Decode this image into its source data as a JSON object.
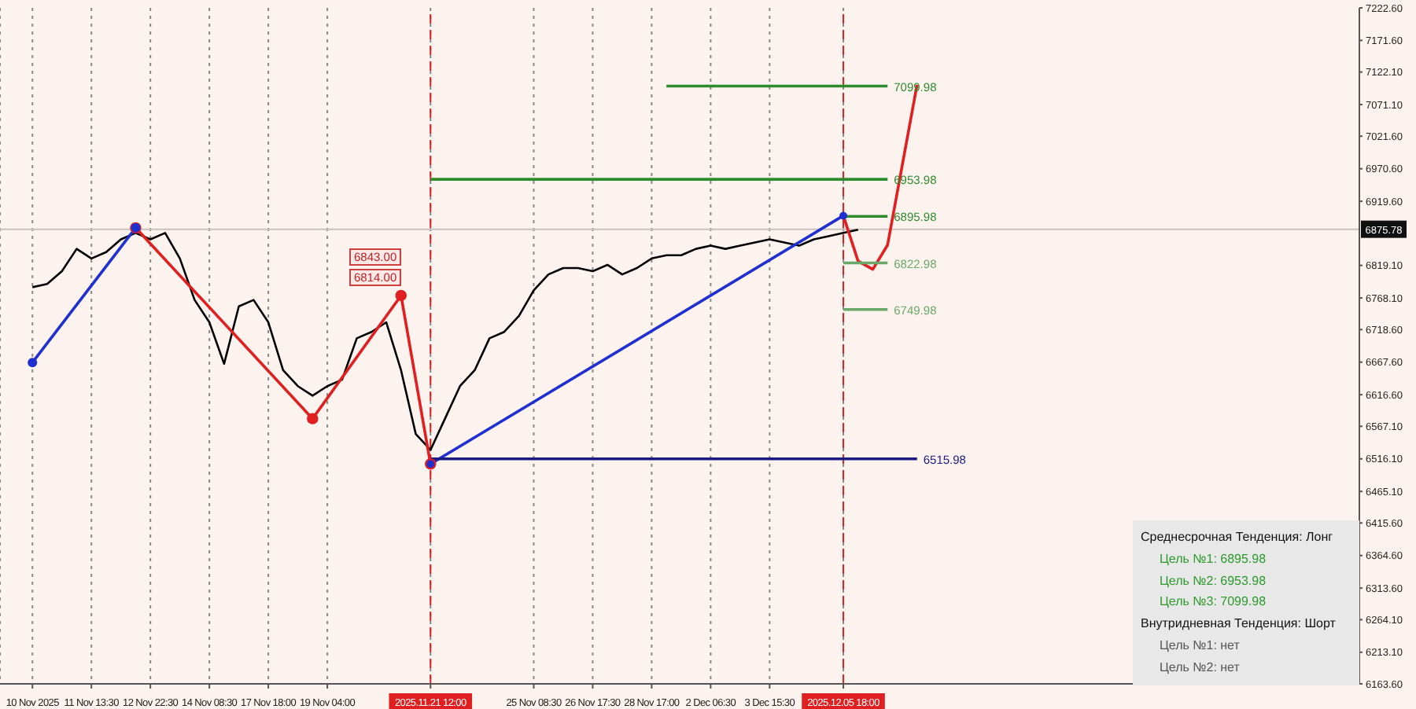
{
  "chart_data": {
    "type": "line",
    "categories": [
      "10 Nov 2025",
      null,
      null,
      null,
      "11 Nov 13:30",
      null,
      null,
      null,
      "12 Nov 22:30",
      null,
      null,
      null,
      "14 Nov 08:30",
      null,
      null,
      null,
      "17 Nov 18:00",
      null,
      null,
      null,
      "19 Nov 04:00",
      null,
      null,
      null,
      null,
      null,
      null,
      "2025.11.21 12:00",
      null,
      null,
      null,
      null,
      null,
      null,
      "25 Nov 08:30",
      null,
      null,
      null,
      "26 Nov 17:30",
      null,
      null,
      null,
      "28 Nov 17:00",
      null,
      null,
      null,
      "2 Dec 06:30",
      null,
      null,
      null,
      "3 Dec 15:30",
      null,
      null,
      null,
      null,
      "2025.12.05 18:00",
      null,
      null,
      null,
      null,
      null,
      null,
      null,
      null,
      null,
      null,
      null,
      null,
      null,
      null,
      null,
      null,
      null,
      null,
      null,
      null,
      null,
      null,
      null,
      null,
      null,
      null,
      null,
      null,
      null,
      null,
      null,
      null,
      null,
      null,
      null
    ],
    "ylim": [
      6163.6,
      7222.6
    ],
    "yticks": [
      {
        "value": 6163.6,
        "label": "6163.60"
      },
      {
        "value": 6213.1,
        "label": "6213.10"
      },
      {
        "value": 6264.1,
        "label": "6264.10"
      },
      {
        "value": 6313.6,
        "label": "6313.60"
      },
      {
        "value": 6364.6,
        "label": "6364.60"
      },
      {
        "value": 6415.6,
        "label": "6415.60"
      },
      {
        "value": 6465.1,
        "label": "6465.10"
      },
      {
        "value": 6516.1,
        "label": "6516.10"
      },
      {
        "value": 6567.1,
        "label": "6567.10"
      },
      {
        "value": 6616.6,
        "label": "6616.60"
      },
      {
        "value": 6667.6,
        "label": "6667.60"
      },
      {
        "value": 6718.6,
        "label": "6718.60"
      },
      {
        "value": 6768.1,
        "label": "6768.10"
      },
      {
        "value": 6819.1,
        "label": "6819.10"
      },
      {
        "value": 6919.6,
        "label": "6919.60"
      },
      {
        "value": 6970.6,
        "label": "6970.60"
      },
      {
        "value": 7021.6,
        "label": "7021.60"
      },
      {
        "value": 7071.1,
        "label": "7071.10"
      },
      {
        "value": 7122.1,
        "label": "7122.10"
      },
      {
        "value": 7171.6,
        "label": "7171.60"
      },
      {
        "value": 7222.6,
        "label": "7222.60"
      }
    ],
    "grid": "x",
    "marker": "none",
    "line_style": "solid",
    "series": [
      {
        "color": "#000000",
        "values": [
          6785,
          6790,
          6810,
          6845,
          6830,
          6840,
          6860,
          6870,
          6860,
          6870,
          6830,
          6765,
          6730,
          6665,
          6755,
          6765,
          6730,
          6655,
          6630,
          6615,
          6630,
          6640,
          6705,
          6715,
          6730,
          6655,
          6555,
          6530,
          6580,
          6630,
          6655,
          6705,
          6715,
          6740,
          6780,
          6805,
          6815,
          6815,
          6810,
          6820,
          6805,
          6815,
          6830,
          6835,
          6835,
          6845,
          6850,
          6845,
          6850,
          6855,
          6860,
          6855,
          6850,
          6860,
          6865,
          6870,
          6875,
          null,
          null,
          null,
          null,
          null,
          null,
          null,
          null,
          null,
          null,
          null,
          null,
          null,
          null,
          null,
          null,
          null,
          null,
          null,
          null,
          null,
          null,
          null,
          null,
          null,
          null,
          null,
          null,
          null,
          null,
          null,
          null,
          null,
          null
        ]
      },
      {
        "color": "#e02020",
        "marker": "circle",
        "values": [
          null,
          null,
          null,
          null,
          null,
          null,
          null,
          6878,
          null,
          null,
          null,
          null,
          null,
          null,
          null,
          null,
          null,
          null,
          null,
          6579,
          null,
          null,
          null,
          null,
          null,
          6772,
          null,
          6508,
          null,
          null,
          null,
          null,
          null,
          null,
          null,
          null,
          null,
          null,
          null,
          null,
          null,
          null,
          null,
          null,
          null,
          null,
          null,
          null,
          null,
          null,
          null,
          null,
          null,
          null,
          null,
          null,
          null,
          null,
          null,
          null,
          null,
          null,
          null,
          null,
          null,
          null,
          null,
          null,
          null,
          null,
          null,
          null,
          null,
          null,
          null,
          null,
          null,
          null,
          null,
          null,
          null,
          null,
          null,
          null,
          null,
          null,
          null,
          null,
          null,
          null,
          null
        ]
      },
      {
        "color": "#1f2fd0",
        "marker": "circle",
        "values": [
          6667,
          null,
          null,
          null,
          null,
          null,
          null,
          6878,
          null,
          null,
          null,
          null,
          null,
          null,
          null,
          null,
          null,
          null,
          null,
          null,
          null,
          null,
          null,
          null,
          null,
          null,
          null,
          null,
          null,
          null,
          null,
          null,
          null,
          null,
          null,
          null,
          null,
          null,
          null,
          null,
          null,
          null,
          null,
          null,
          null,
          null,
          null,
          null,
          null,
          null,
          null,
          null,
          null,
          null,
          null,
          null,
          null,
          null,
          null,
          null,
          null,
          null,
          null,
          null,
          null,
          null,
          null,
          null,
          null,
          null,
          null,
          null,
          null,
          null,
          null,
          null,
          null,
          null,
          null,
          null,
          null,
          null,
          null,
          null,
          null,
          null,
          null,
          null,
          null,
          null,
          null
        ]
      },
      {
        "color": "#1f2fd0",
        "marker": "circle",
        "values": [
          null,
          null,
          null,
          null,
          null,
          null,
          null,
          null,
          null,
          null,
          null,
          null,
          null,
          null,
          null,
          null,
          null,
          null,
          null,
          null,
          null,
          null,
          null,
          null,
          null,
          null,
          null,
          6508,
          null,
          null,
          null,
          null,
          null,
          null,
          null,
          null,
          null,
          null,
          null,
          null,
          null,
          null,
          null,
          null,
          null,
          null,
          null,
          null,
          null,
          null,
          null,
          null,
          null,
          null,
          null,
          6897,
          null,
          null,
          null,
          null,
          null,
          null,
          null,
          null,
          null,
          null,
          null,
          null,
          null,
          null,
          null,
          null,
          null,
          null,
          null,
          null,
          null,
          null,
          null,
          null,
          null,
          null,
          null,
          null,
          null,
          null,
          null,
          null,
          null,
          null,
          null
        ]
      },
      {
        "color": "#e02020",
        "values": [
          null,
          null,
          null,
          null,
          null,
          null,
          null,
          null,
          null,
          null,
          null,
          null,
          null,
          null,
          null,
          null,
          null,
          null,
          null,
          null,
          null,
          null,
          null,
          null,
          null,
          null,
          null,
          null,
          null,
          null,
          null,
          null,
          null,
          null,
          null,
          null,
          null,
          null,
          null,
          null,
          null,
          null,
          null,
          null,
          null,
          null,
          null,
          null,
          null,
          null,
          null,
          null,
          null,
          null,
          null,
          6897,
          6826,
          6813,
          6851,
          null,
          7102,
          null,
          null,
          null,
          null,
          null,
          null,
          null,
          null,
          null,
          null,
          null,
          null,
          null,
          null,
          null,
          null,
          null,
          null,
          null,
          null,
          null,
          null,
          null,
          null,
          null,
          null,
          null,
          null,
          null,
          null
        ]
      },
      {
        "name": "7099.98",
        "color": "#2e8b2e",
        "values": [
          null,
          null,
          null,
          null,
          null,
          null,
          null,
          null,
          null,
          null,
          null,
          null,
          null,
          null,
          null,
          null,
          null,
          null,
          null,
          null,
          null,
          null,
          null,
          null,
          null,
          null,
          null,
          null,
          null,
          null,
          null,
          null,
          null,
          null,
          null,
          null,
          null,
          null,
          null,
          null,
          null,
          null,
          null,
          7100,
          null,
          null,
          null,
          null,
          null,
          null,
          null,
          null,
          null,
          null,
          null,
          null,
          null,
          null,
          7100,
          null,
          null,
          null,
          null,
          null,
          null,
          null,
          null,
          null,
          null,
          null,
          null,
          null,
          null,
          null,
          null,
          null,
          null,
          null,
          null,
          null,
          null,
          null,
          null,
          null,
          null,
          null,
          null,
          null,
          null,
          null,
          null
        ]
      },
      {
        "name": "6953.98",
        "color": "#2e8b2e",
        "values": [
          null,
          null,
          null,
          null,
          null,
          null,
          null,
          null,
          null,
          null,
          null,
          null,
          null,
          null,
          null,
          null,
          null,
          null,
          null,
          null,
          null,
          null,
          null,
          null,
          null,
          null,
          null,
          6954,
          null,
          null,
          null,
          null,
          null,
          null,
          null,
          null,
          null,
          null,
          null,
          null,
          null,
          null,
          null,
          null,
          null,
          null,
          null,
          null,
          null,
          null,
          null,
          null,
          null,
          null,
          null,
          null,
          null,
          null,
          6954,
          null,
          null,
          null,
          null,
          null,
          null,
          null,
          null,
          null,
          null,
          null,
          null,
          null,
          null,
          null,
          null,
          null,
          null,
          null,
          null,
          null,
          null,
          null,
          null,
          null,
          null,
          null,
          null,
          null,
          null,
          null,
          null
        ]
      },
      {
        "name": "6895.98",
        "color": "#2e8b2e",
        "values": [
          null,
          null,
          null,
          null,
          null,
          null,
          null,
          null,
          null,
          null,
          null,
          null,
          null,
          null,
          null,
          null,
          null,
          null,
          null,
          null,
          null,
          null,
          null,
          null,
          null,
          null,
          null,
          null,
          null,
          null,
          null,
          null,
          null,
          null,
          null,
          null,
          null,
          null,
          null,
          null,
          null,
          null,
          null,
          null,
          null,
          null,
          null,
          null,
          null,
          null,
          null,
          null,
          null,
          null,
          null,
          6896,
          null,
          null,
          6896,
          null,
          null,
          null,
          null,
          null,
          null,
          null,
          null,
          null,
          null,
          null,
          null,
          null,
          null,
          null,
          null,
          null,
          null,
          null,
          null,
          null,
          null,
          null,
          null,
          null,
          null,
          null,
          null,
          null,
          null,
          null,
          null
        ]
      },
      {
        "name": "6822.98",
        "color": "#6aa86a",
        "values": [
          null,
          null,
          null,
          null,
          null,
          null,
          null,
          null,
          null,
          null,
          null,
          null,
          null,
          null,
          null,
          null,
          null,
          null,
          null,
          null,
          null,
          null,
          null,
          null,
          null,
          null,
          null,
          null,
          null,
          null,
          null,
          null,
          null,
          null,
          null,
          null,
          null,
          null,
          null,
          null,
          null,
          null,
          null,
          null,
          null,
          null,
          null,
          null,
          null,
          null,
          null,
          null,
          null,
          null,
          null,
          6823,
          null,
          null,
          6823,
          null,
          null,
          null,
          null,
          null,
          null,
          null,
          null,
          null,
          null,
          null,
          null,
          null,
          null,
          null,
          null,
          null,
          null,
          null,
          null,
          null,
          null,
          null,
          null,
          null,
          null,
          null,
          null,
          null,
          null,
          null,
          null
        ]
      },
      {
        "name": "6749.98",
        "color": "#6aa86a",
        "values": [
          null,
          null,
          null,
          null,
          null,
          null,
          null,
          null,
          null,
          null,
          null,
          null,
          null,
          null,
          null,
          null,
          null,
          null,
          null,
          null,
          null,
          null,
          null,
          null,
          null,
          null,
          null,
          null,
          null,
          null,
          null,
          null,
          null,
          null,
          null,
          null,
          null,
          null,
          null,
          null,
          null,
          null,
          null,
          null,
          null,
          null,
          null,
          null,
          null,
          null,
          null,
          null,
          null,
          null,
          null,
          6750,
          null,
          null,
          6750,
          null,
          null,
          null,
          null,
          null,
          null,
          null,
          null,
          null,
          null,
          null,
          null,
          null,
          null,
          null,
          null,
          null,
          null,
          null,
          null,
          null,
          null,
          null,
          null,
          null,
          null,
          null,
          null,
          null,
          null,
          null,
          null
        ]
      },
      {
        "name": "6515.98",
        "color": "#1a1a80",
        "values": [
          null,
          null,
          null,
          null,
          null,
          null,
          null,
          null,
          null,
          null,
          null,
          null,
          null,
          null,
          null,
          null,
          null,
          null,
          null,
          null,
          null,
          null,
          null,
          null,
          null,
          null,
          null,
          6516,
          null,
          null,
          null,
          null,
          null,
          null,
          null,
          null,
          null,
          null,
          null,
          null,
          null,
          null,
          null,
          null,
          null,
          null,
          null,
          null,
          null,
          null,
          null,
          null,
          null,
          null,
          null,
          null,
          null,
          null,
          null,
          null,
          6516,
          null,
          null,
          null,
          null,
          null,
          null,
          null,
          null,
          null,
          null,
          null,
          null,
          null,
          null,
          null,
          null,
          null,
          null,
          null,
          null,
          null,
          null,
          null,
          null,
          null,
          null,
          null,
          null,
          null,
          null
        ]
      }
    ],
    "ref_lines": [
      {
        "axis": "x",
        "value": "2025.11.21 12:00",
        "color": "#e02020",
        "line_style": "dashed"
      },
      {
        "axis": "x",
        "value": "2025.12.05 18:00",
        "color": "#e02020",
        "line_style": "dashed"
      },
      {
        "axis": "y",
        "value": 6875.78,
        "label": "6875.78",
        "color": "#c8c0c0"
      }
    ],
    "annotations": [
      "6843.00",
      "6814.00",
      "Среднесрочная Тенденция: Лонг",
      "Цель №1: 6895.98",
      "Цель №2: 6953.98",
      "Цель №3: 7099.98",
      "Внутридневная Тенденция: Шорт",
      "Цель №1: нет",
      "Цель №2: нет"
    ]
  }
}
